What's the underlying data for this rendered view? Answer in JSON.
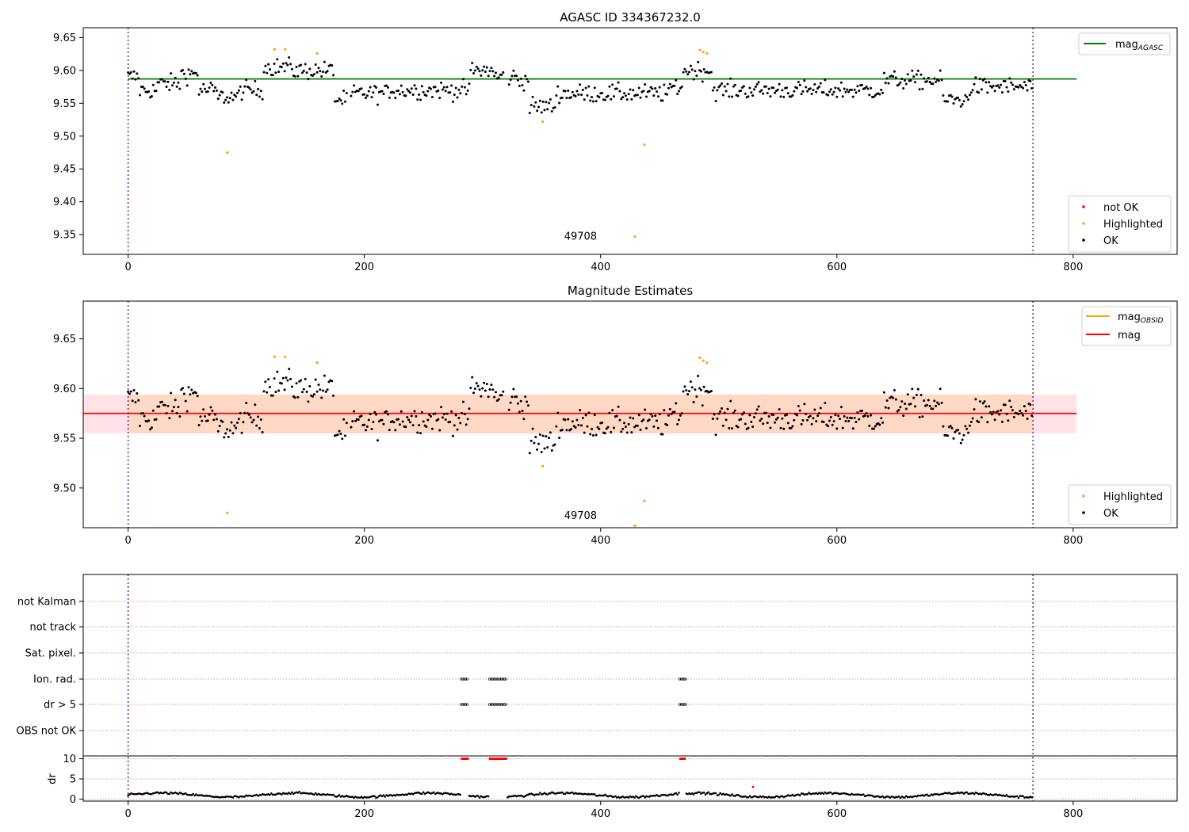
{
  "chart_data": [
    {
      "type": "scatter",
      "title": "AGASC ID 334367232.0",
      "xlim": [
        -38,
        888
      ],
      "ylim": [
        9.32,
        9.665
      ],
      "xticks": [
        0,
        200,
        400,
        600,
        800
      ],
      "yticks": [
        9.35,
        9.4,
        9.45,
        9.5,
        9.55,
        9.6,
        9.65
      ],
      "vlines": [
        0,
        766
      ],
      "hline": {
        "value": 9.587,
        "x": [
          0,
          803
        ],
        "color": "#008000",
        "label": "mag",
        "label_sub": "AGASC"
      },
      "obsid_label": {
        "text": "49708",
        "x": 383,
        "y": 9.33
      },
      "legend_upper": "upper right",
      "legend_lower": "lower right",
      "legend_entries": [
        {
          "label": "not OK",
          "color": "#ff0000"
        },
        {
          "label": "Highlighted",
          "color": "#ffa500"
        },
        {
          "label": "OK",
          "color": "#000000"
        }
      ],
      "grid": false
    },
    {
      "type": "scatter",
      "title": "Magnitude Estimates",
      "xlim": [
        -38,
        888
      ],
      "ylim": [
        9.46,
        9.688
      ],
      "xticks": [
        0,
        200,
        400,
        600,
        800
      ],
      "yticks": [
        9.5,
        9.55,
        9.6,
        9.65
      ],
      "vlines": [
        0,
        766
      ],
      "band_obsid": {
        "low": 9.555,
        "high": 9.594,
        "x": [
          -38,
          803
        ],
        "color": "#ffc0cb"
      },
      "band_mag": {
        "low": 9.555,
        "high": 9.594,
        "x": [
          0,
          766
        ],
        "color": "#ffd6c2"
      },
      "mag_line": {
        "value": 9.575,
        "x": [
          -38,
          803
        ],
        "color": "#ff0000",
        "label": "mag"
      },
      "mag_obsid_label": {
        "label": "mag",
        "label_sub": "OBSID",
        "color": "#ffa500"
      },
      "obsid_label": {
        "text": "49708",
        "x": 383,
        "y": 9.468
      },
      "legend_upper": "upper right",
      "legend_lower": "lower right",
      "legend_entries": [
        {
          "label": "Highlighted",
          "color": "#ffa500"
        },
        {
          "label": "OK",
          "color": "#000000"
        }
      ],
      "grid": false
    },
    {
      "type": "scatter",
      "xlim": [
        -38,
        888
      ],
      "xticks": [
        0,
        200,
        400,
        600,
        800
      ],
      "vlines": [
        0,
        766
      ],
      "flag_rows": [
        "not Kalman",
        "not track",
        "Sat. pixel.",
        "Ion. rad.",
        "dr > 5",
        "OBS not OK"
      ],
      "flag_points": {
        "Ion. rad.": [
          [
            282,
            288
          ],
          [
            306,
            320
          ],
          [
            467,
            472
          ]
        ],
        "dr > 5": [
          [
            282,
            288
          ],
          [
            306,
            320
          ],
          [
            467,
            472
          ]
        ]
      },
      "dr_panel": {
        "ylabel": "dr",
        "yticks": [
          0,
          5,
          10
        ],
        "ylim": [
          -0.5,
          10.5
        ],
        "clip_value": 10,
        "clip_ranges": [
          [
            282,
            288
          ],
          [
            306,
            320
          ],
          [
            467,
            472
          ]
        ],
        "outlier": {
          "x": 529,
          "y": 3.0
        }
      },
      "grid": true
    }
  ]
}
